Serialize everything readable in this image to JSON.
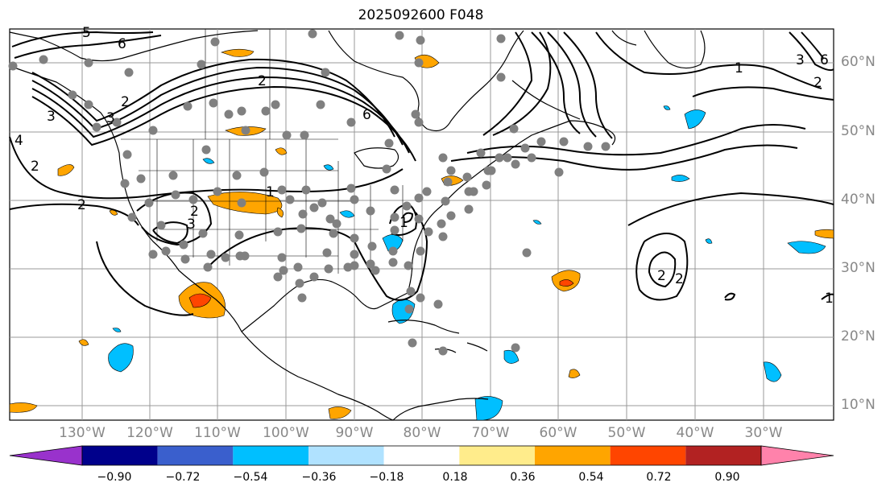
{
  "title": "2025092600 F048",
  "lon_labels": [
    "130°W",
    "120°W",
    "110°W",
    "100°W",
    "90°W",
    "80°W",
    "70°W",
    "60°W",
    "50°W",
    "40°W",
    "30°W"
  ],
  "lat_labels": [
    "60°N",
    "50°N",
    "40°N",
    "30°N",
    "20°N",
    "10°N"
  ],
  "contour_labels": [
    "5",
    "6",
    "1",
    "2",
    "3",
    "4",
    "2",
    "3",
    "6",
    "2",
    "2",
    "1",
    "2",
    "3",
    "1",
    "1",
    "2",
    "3",
    "6",
    "2",
    "2"
  ],
  "colorbar": {
    "ticks": [
      "−0.90",
      "−0.72",
      "−0.54",
      "−0.36",
      "−0.18",
      "0.18",
      "0.36",
      "0.54",
      "0.72",
      "0.90"
    ],
    "colors": [
      "#9932CC",
      "#00008B",
      "#3A5FCD",
      "#00BFFF",
      "#B0E2FF",
      "#FFFFFF",
      "#FFEC8B",
      "#FFA500",
      "#FF4500",
      "#B22222",
      "#FF82AB"
    ]
  }
}
